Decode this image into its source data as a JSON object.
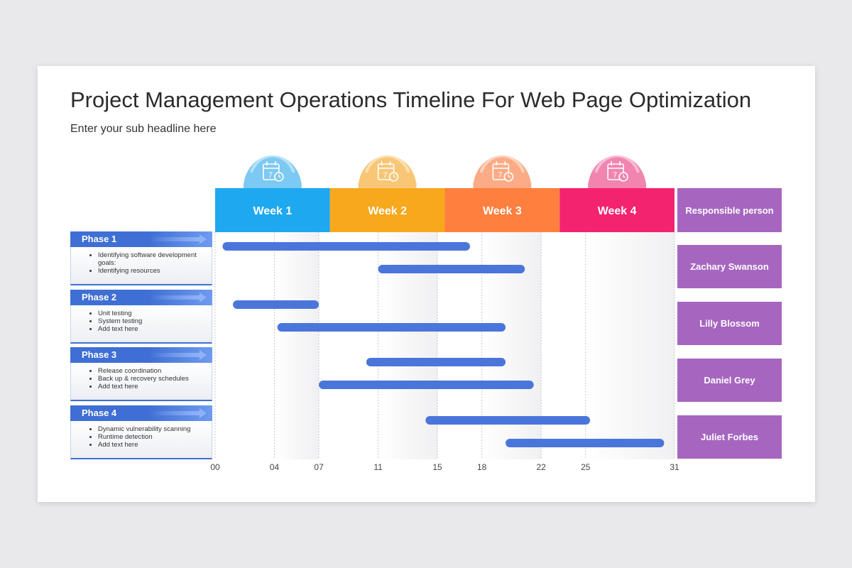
{
  "title": "Project Management Operations Timeline For Web Page Optimization",
  "subtitle": "Enter your sub headline here",
  "responsible_header": "Responsible person",
  "weeks": [
    {
      "label": "Week 1",
      "color": "#1ea8f0",
      "bubble": "#7cc9f3"
    },
    {
      "label": "Week 2",
      "color": "#f7a81c",
      "bubble": "#f9c676"
    },
    {
      "label": "Week 3",
      "color": "#ff7f3f",
      "bubble": "#fbab85"
    },
    {
      "label": "Week 4",
      "color": "#f4236f",
      "bubble": "#f284b0"
    }
  ],
  "phases": [
    {
      "title": "Phase 1",
      "items": [
        "Identifying software development goals:",
        "Identifying resources"
      ]
    },
    {
      "title": "Phase 2",
      "items": [
        "Unit testing",
        "System testing",
        "Add text here"
      ]
    },
    {
      "title": "Phase 3",
      "items": [
        "Release coordination",
        "Back up & recovery schedules",
        "Add text here"
      ]
    },
    {
      "title": "Phase 4",
      "items": [
        "Dynamic vulnerability scanning",
        "Runtime detection",
        "Add text here"
      ]
    }
  ],
  "responsible": [
    "Zachary Swanson",
    "Lilly Blossom",
    "Daniel Grey",
    "Juliet Forbes"
  ],
  "chart_data": {
    "type": "bar",
    "x_ticks": [
      "00",
      "04",
      "07",
      "11",
      "15",
      "18",
      "22",
      "25",
      "31"
    ],
    "xlim": [
      0,
      31
    ],
    "tasks": [
      {
        "phase": "Phase 1",
        "start": 0.5,
        "end": 17.2
      },
      {
        "phase": "Phase 1",
        "start": 11.0,
        "end": 20.9
      },
      {
        "phase": "Phase 2",
        "start": 1.2,
        "end": 7.0
      },
      {
        "phase": "Phase 2",
        "start": 4.2,
        "end": 19.6
      },
      {
        "phase": "Phase 3",
        "start": 10.2,
        "end": 19.6
      },
      {
        "phase": "Phase 3",
        "start": 7.0,
        "end": 21.5
      },
      {
        "phase": "Phase 4",
        "start": 14.2,
        "end": 25.3
      },
      {
        "phase": "Phase 4",
        "start": 19.6,
        "end": 30.3
      }
    ],
    "bar_color": "#4a76db"
  }
}
